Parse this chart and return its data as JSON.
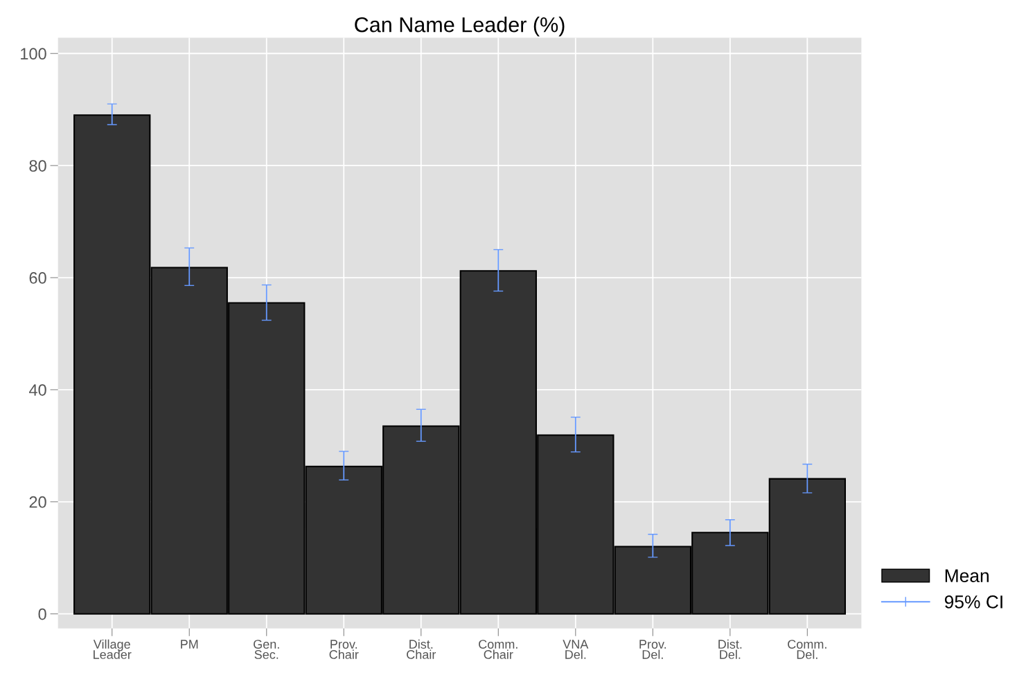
{
  "chart_data": {
    "type": "bar",
    "title": "Can Name Leader (%)",
    "categories": [
      "Village\nLeader",
      "PM",
      "Gen.\nSec.",
      "Prov.\nChair",
      "Dist.\nChair",
      "Comm.\nChair",
      "VNA\nDel.",
      "Prov.\nDel.",
      "Dist.\nDel.",
      "Comm.\nDel."
    ],
    "series": [
      {
        "name": "Mean",
        "color": "#333333",
        "values": [
          89.0,
          61.8,
          55.5,
          26.3,
          33.5,
          61.2,
          31.9,
          12.0,
          14.5,
          24.1
        ],
        "errors": [
          [
            87.3,
            91.0
          ],
          [
            58.6,
            65.3
          ],
          [
            52.4,
            58.7
          ],
          [
            23.9,
            29.0
          ],
          [
            30.8,
            36.5
          ],
          [
            57.6,
            65.0
          ],
          [
            28.9,
            35.1
          ],
          [
            10.1,
            14.2
          ],
          [
            12.2,
            16.8
          ],
          [
            21.6,
            26.7
          ]
        ]
      },
      {
        "name": "95% CI",
        "type": "scatter",
        "color": "#6699ff",
        "values": [
          null,
          null,
          null,
          null,
          null,
          null,
          null,
          null,
          null,
          null
        ]
      }
    ],
    "ylim": [
      -2.6,
      102.8
    ],
    "yticks": [
      0,
      20,
      40,
      60,
      80,
      100
    ],
    "grid": true,
    "legend": "bottom right"
  }
}
